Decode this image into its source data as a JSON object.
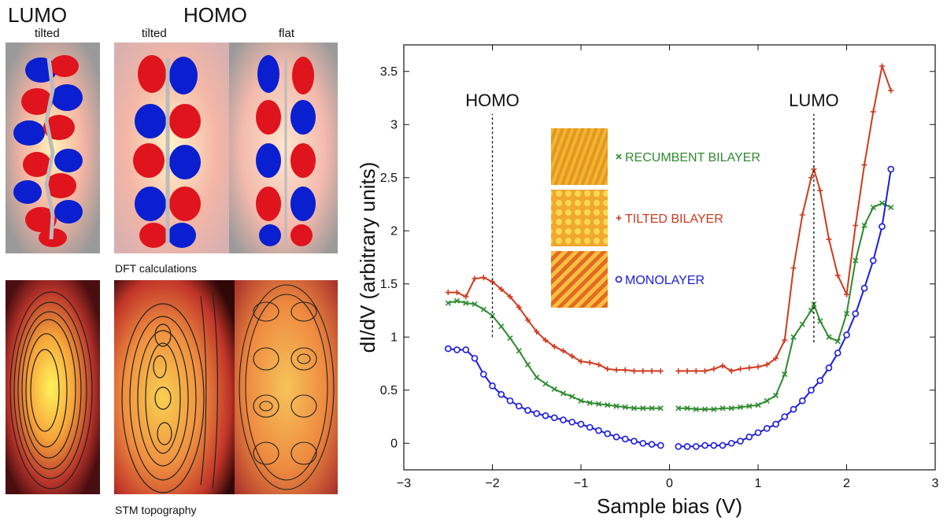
{
  "left_panel": {
    "lumo_title": "LUMO",
    "homo_title": "HOMO",
    "lumo_sub": "tilted",
    "homo_sub_tilted": "tilted",
    "homo_sub_flat": "flat",
    "dft_caption": "DFT calculations",
    "stm_caption": "STM topography"
  },
  "chart_data": {
    "type": "line",
    "xlabel": "Sample bias (V)",
    "ylabel": "dI/dV (arbitrary units)",
    "xlim": [
      -3,
      3
    ],
    "ylim": [
      -0.25,
      3.75
    ],
    "xticks": [
      -3,
      -2,
      -1,
      0,
      1,
      2,
      3
    ],
    "yticks": [
      0,
      0.5,
      1,
      1.5,
      2,
      2.5,
      3,
      3.5
    ],
    "grid": false,
    "annotations": [
      {
        "text": "HOMO",
        "x": -2.0,
        "line_from": 1.0,
        "line_to": 3.1
      },
      {
        "text": "LUMO",
        "x": 1.63,
        "line_from": 0.95,
        "line_to": 3.1
      }
    ],
    "series": [
      {
        "name": "RECUMBENT  BILAYER",
        "color": "#2e8b2e",
        "marker": "x",
        "segments": [
          {
            "x": [
              -2.5,
              -2.4,
              -2.3,
              -2.2,
              -2.1,
              -2.0,
              -1.9,
              -1.8,
              -1.7,
              -1.6,
              -1.5,
              -1.4,
              -1.3,
              -1.2,
              -1.1,
              -1.0,
              -0.9,
              -0.8,
              -0.7,
              -0.6,
              -0.5,
              -0.4,
              -0.3,
              -0.2,
              -0.1
            ],
            "y": [
              1.32,
              1.34,
              1.32,
              1.31,
              1.26,
              1.2,
              1.1,
              0.99,
              0.87,
              0.74,
              0.62,
              0.56,
              0.51,
              0.47,
              0.44,
              0.4,
              0.38,
              0.37,
              0.36,
              0.35,
              0.34,
              0.33,
              0.33,
              0.33,
              0.33
            ]
          },
          {
            "x": [
              0.1,
              0.2,
              0.3,
              0.4,
              0.5,
              0.6,
              0.7,
              0.8,
              0.9,
              1.0,
              1.1,
              1.2,
              1.3,
              1.4,
              1.5,
              1.6,
              1.63,
              1.7,
              1.8,
              1.9,
              2.0,
              2.1,
              2.2,
              2.3,
              2.4,
              2.5
            ],
            "y": [
              0.33,
              0.33,
              0.32,
              0.32,
              0.32,
              0.33,
              0.33,
              0.34,
              0.35,
              0.36,
              0.4,
              0.45,
              0.65,
              1.0,
              1.12,
              1.25,
              1.31,
              1.15,
              1.0,
              0.96,
              1.22,
              1.72,
              2.05,
              2.22,
              2.26,
              2.22
            ]
          }
        ]
      },
      {
        "name": "TILTED BILAYER",
        "color": "#d03a1e",
        "marker": "+",
        "segments": [
          {
            "x": [
              -2.5,
              -2.4,
              -2.3,
              -2.2,
              -2.1,
              -2.0,
              -1.9,
              -1.8,
              -1.7,
              -1.6,
              -1.5,
              -1.4,
              -1.3,
              -1.2,
              -1.1,
              -1.0,
              -0.9,
              -0.8,
              -0.7,
              -0.6,
              -0.5,
              -0.4,
              -0.3,
              -0.2,
              -0.1
            ],
            "y": [
              1.42,
              1.42,
              1.38,
              1.55,
              1.56,
              1.52,
              1.45,
              1.38,
              1.28,
              1.16,
              1.05,
              0.97,
              0.91,
              0.87,
              0.82,
              0.77,
              0.76,
              0.74,
              0.7,
              0.69,
              0.69,
              0.68,
              0.68,
              0.68,
              0.68
            ]
          },
          {
            "x": [
              0.1,
              0.2,
              0.3,
              0.4,
              0.5,
              0.6,
              0.7,
              0.8,
              0.9,
              1.0,
              1.1,
              1.2,
              1.3,
              1.4,
              1.5,
              1.6,
              1.63,
              1.7,
              1.8,
              1.9,
              2.0,
              2.1,
              2.2,
              2.3,
              2.4,
              2.5
            ],
            "y": [
              0.68,
              0.68,
              0.68,
              0.68,
              0.7,
              0.73,
              0.68,
              0.7,
              0.71,
              0.72,
              0.74,
              0.8,
              0.97,
              1.65,
              2.15,
              2.5,
              2.58,
              2.38,
              1.92,
              1.58,
              1.4,
              2.05,
              2.62,
              3.12,
              3.55,
              3.32
            ]
          }
        ]
      },
      {
        "name": "MONOLAYER",
        "color": "#1c1ce0",
        "marker": "o",
        "segments": [
          {
            "x": [
              -2.5,
              -2.4,
              -2.3,
              -2.2,
              -2.1,
              -2.0,
              -1.9,
              -1.8,
              -1.7,
              -1.6,
              -1.5,
              -1.4,
              -1.3,
              -1.2,
              -1.1,
              -1.0,
              -0.9,
              -0.8,
              -0.7,
              -0.6,
              -0.5,
              -0.4,
              -0.3,
              -0.2,
              -0.1
            ],
            "y": [
              0.89,
              0.88,
              0.88,
              0.8,
              0.65,
              0.54,
              0.46,
              0.4,
              0.35,
              0.31,
              0.28,
              0.26,
              0.24,
              0.22,
              0.2,
              0.18,
              0.15,
              0.12,
              0.09,
              0.06,
              0.04,
              0.02,
              0.0,
              -0.01,
              -0.02
            ]
          },
          {
            "x": [
              0.1,
              0.2,
              0.3,
              0.4,
              0.5,
              0.6,
              0.7,
              0.8,
              0.9,
              1.0,
              1.1,
              1.2,
              1.3,
              1.4,
              1.5,
              1.6,
              1.7,
              1.8,
              1.9,
              2.0,
              2.1,
              2.2,
              2.3,
              2.4,
              2.5
            ],
            "y": [
              -0.03,
              -0.03,
              -0.03,
              -0.02,
              -0.02,
              -0.02,
              0.0,
              0.02,
              0.06,
              0.1,
              0.14,
              0.18,
              0.25,
              0.32,
              0.4,
              0.5,
              0.59,
              0.71,
              0.85,
              1.02,
              1.22,
              1.46,
              1.72,
              2.04,
              2.58
            ]
          }
        ]
      }
    ]
  }
}
